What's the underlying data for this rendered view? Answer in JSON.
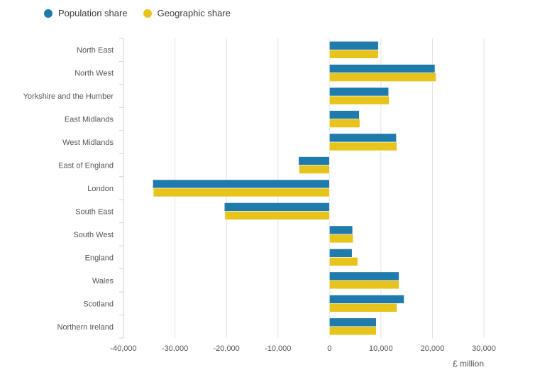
{
  "chart_data": {
    "type": "bar",
    "orientation": "horizontal",
    "categories": [
      "North East",
      "North West",
      "Yorkshire and the Humber",
      "East Midlands",
      "West Midlands",
      "East of England",
      "London",
      "South East",
      "South West",
      "England",
      "Wales",
      "Scotland",
      "Northern Ireland"
    ],
    "series": [
      {
        "name": "Population share",
        "color": "#1f7bab",
        "values": [
          9500,
          20500,
          11500,
          5800,
          13000,
          -6000,
          -34300,
          -20400,
          4500,
          4400,
          13500,
          14500,
          9100
        ]
      },
      {
        "name": "Geographic share",
        "color": "#e8c31c",
        "values": [
          9500,
          20700,
          11600,
          5900,
          13100,
          -5900,
          -34200,
          -20300,
          4600,
          5500,
          13500,
          13100,
          9100
        ]
      }
    ],
    "xlim": [
      -40000,
      30000
    ],
    "xticks": [
      -40000,
      -30000,
      -20000,
      -10000,
      0,
      10000,
      20000,
      30000
    ],
    "xtick_labels": [
      "-40,000",
      "-30,000",
      "-20,000",
      "-10,000",
      "0",
      "10,000",
      "20,000",
      "30,000"
    ],
    "xlabel": "£ million",
    "legend_position": "top-left",
    "grid": true
  }
}
